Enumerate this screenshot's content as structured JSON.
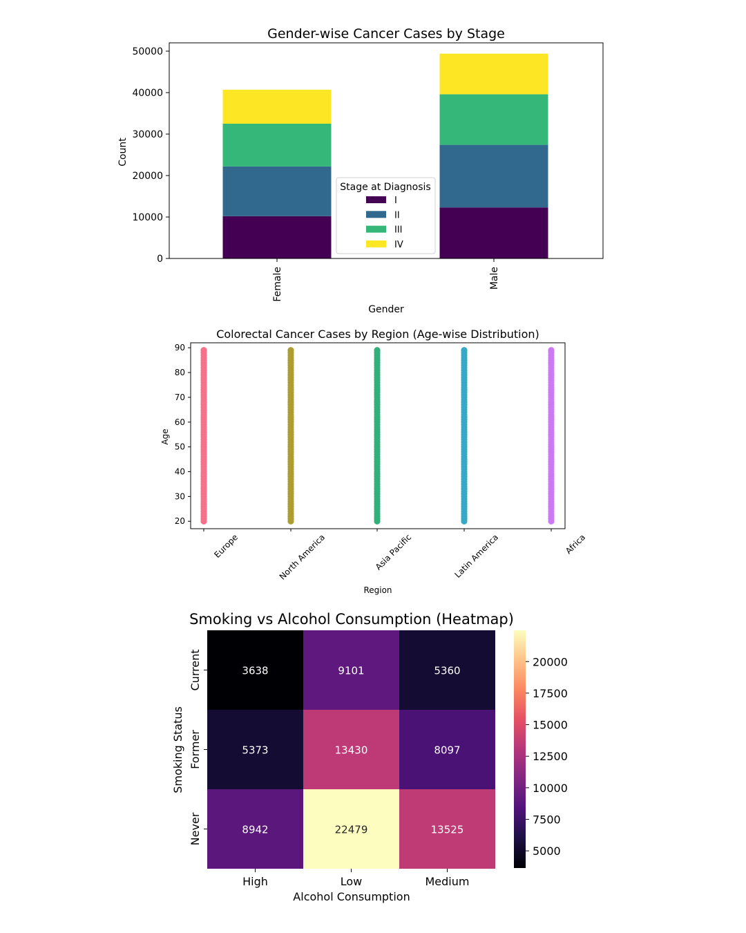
{
  "chart_data": [
    {
      "type": "bar",
      "stacked": true,
      "title": "Gender-wise Cancer Cases by Stage",
      "xlabel": "Gender",
      "ylabel": "Count",
      "categories": [
        "Female",
        "Male"
      ],
      "ylim": [
        0,
        52000
      ],
      "yticks": [
        0,
        10000,
        20000,
        30000,
        40000,
        50000
      ],
      "series": [
        {
          "name": "I",
          "color": "#440154",
          "values": [
            10200,
            12300
          ]
        },
        {
          "name": "II",
          "color": "#31688e",
          "values": [
            12000,
            15100
          ]
        },
        {
          "name": "III",
          "color": "#35b779",
          "values": [
            10300,
            12200
          ]
        },
        {
          "name": "IV",
          "color": "#fde725",
          "values": [
            8200,
            9800
          ]
        }
      ],
      "legend": {
        "title": "Stage at Diagnosis",
        "placement": "lower-center"
      },
      "grid": false
    },
    {
      "type": "scatter",
      "title": "Colorectal Cancer Cases by Region (Age-wise Distribution)",
      "xlabel": "Region",
      "ylabel": "Age",
      "categories": [
        "Europe",
        "North America",
        "Asia Pacific",
        "Latin America",
        "Africa"
      ],
      "colors": [
        "#f77189",
        "#ae9d31",
        "#33b07a",
        "#38a9c5",
        "#cc7af4"
      ],
      "age_range": [
        20,
        89
      ],
      "ylim": [
        17,
        92
      ],
      "yticks": [
        20,
        30,
        40,
        50,
        60,
        70,
        80,
        90
      ],
      "grid": false
    },
    {
      "type": "heatmap",
      "title": "Smoking vs Alcohol Consumption (Heatmap)",
      "xlabel": "Alcohol Consumption",
      "ylabel": "Smoking Status",
      "x_categories": [
        "High",
        "Low",
        "Medium"
      ],
      "y_categories": [
        "Current",
        "Former",
        "Never"
      ],
      "values": [
        [
          3638,
          9101,
          5360
        ],
        [
          5373,
          13430,
          8097
        ],
        [
          8942,
          22479,
          13525
        ]
      ],
      "colormap": "magma",
      "colorbar": {
        "min": 3638,
        "max": 22479,
        "ticks": [
          5000,
          7500,
          10000,
          12500,
          15000,
          17500,
          20000
        ]
      }
    }
  ]
}
